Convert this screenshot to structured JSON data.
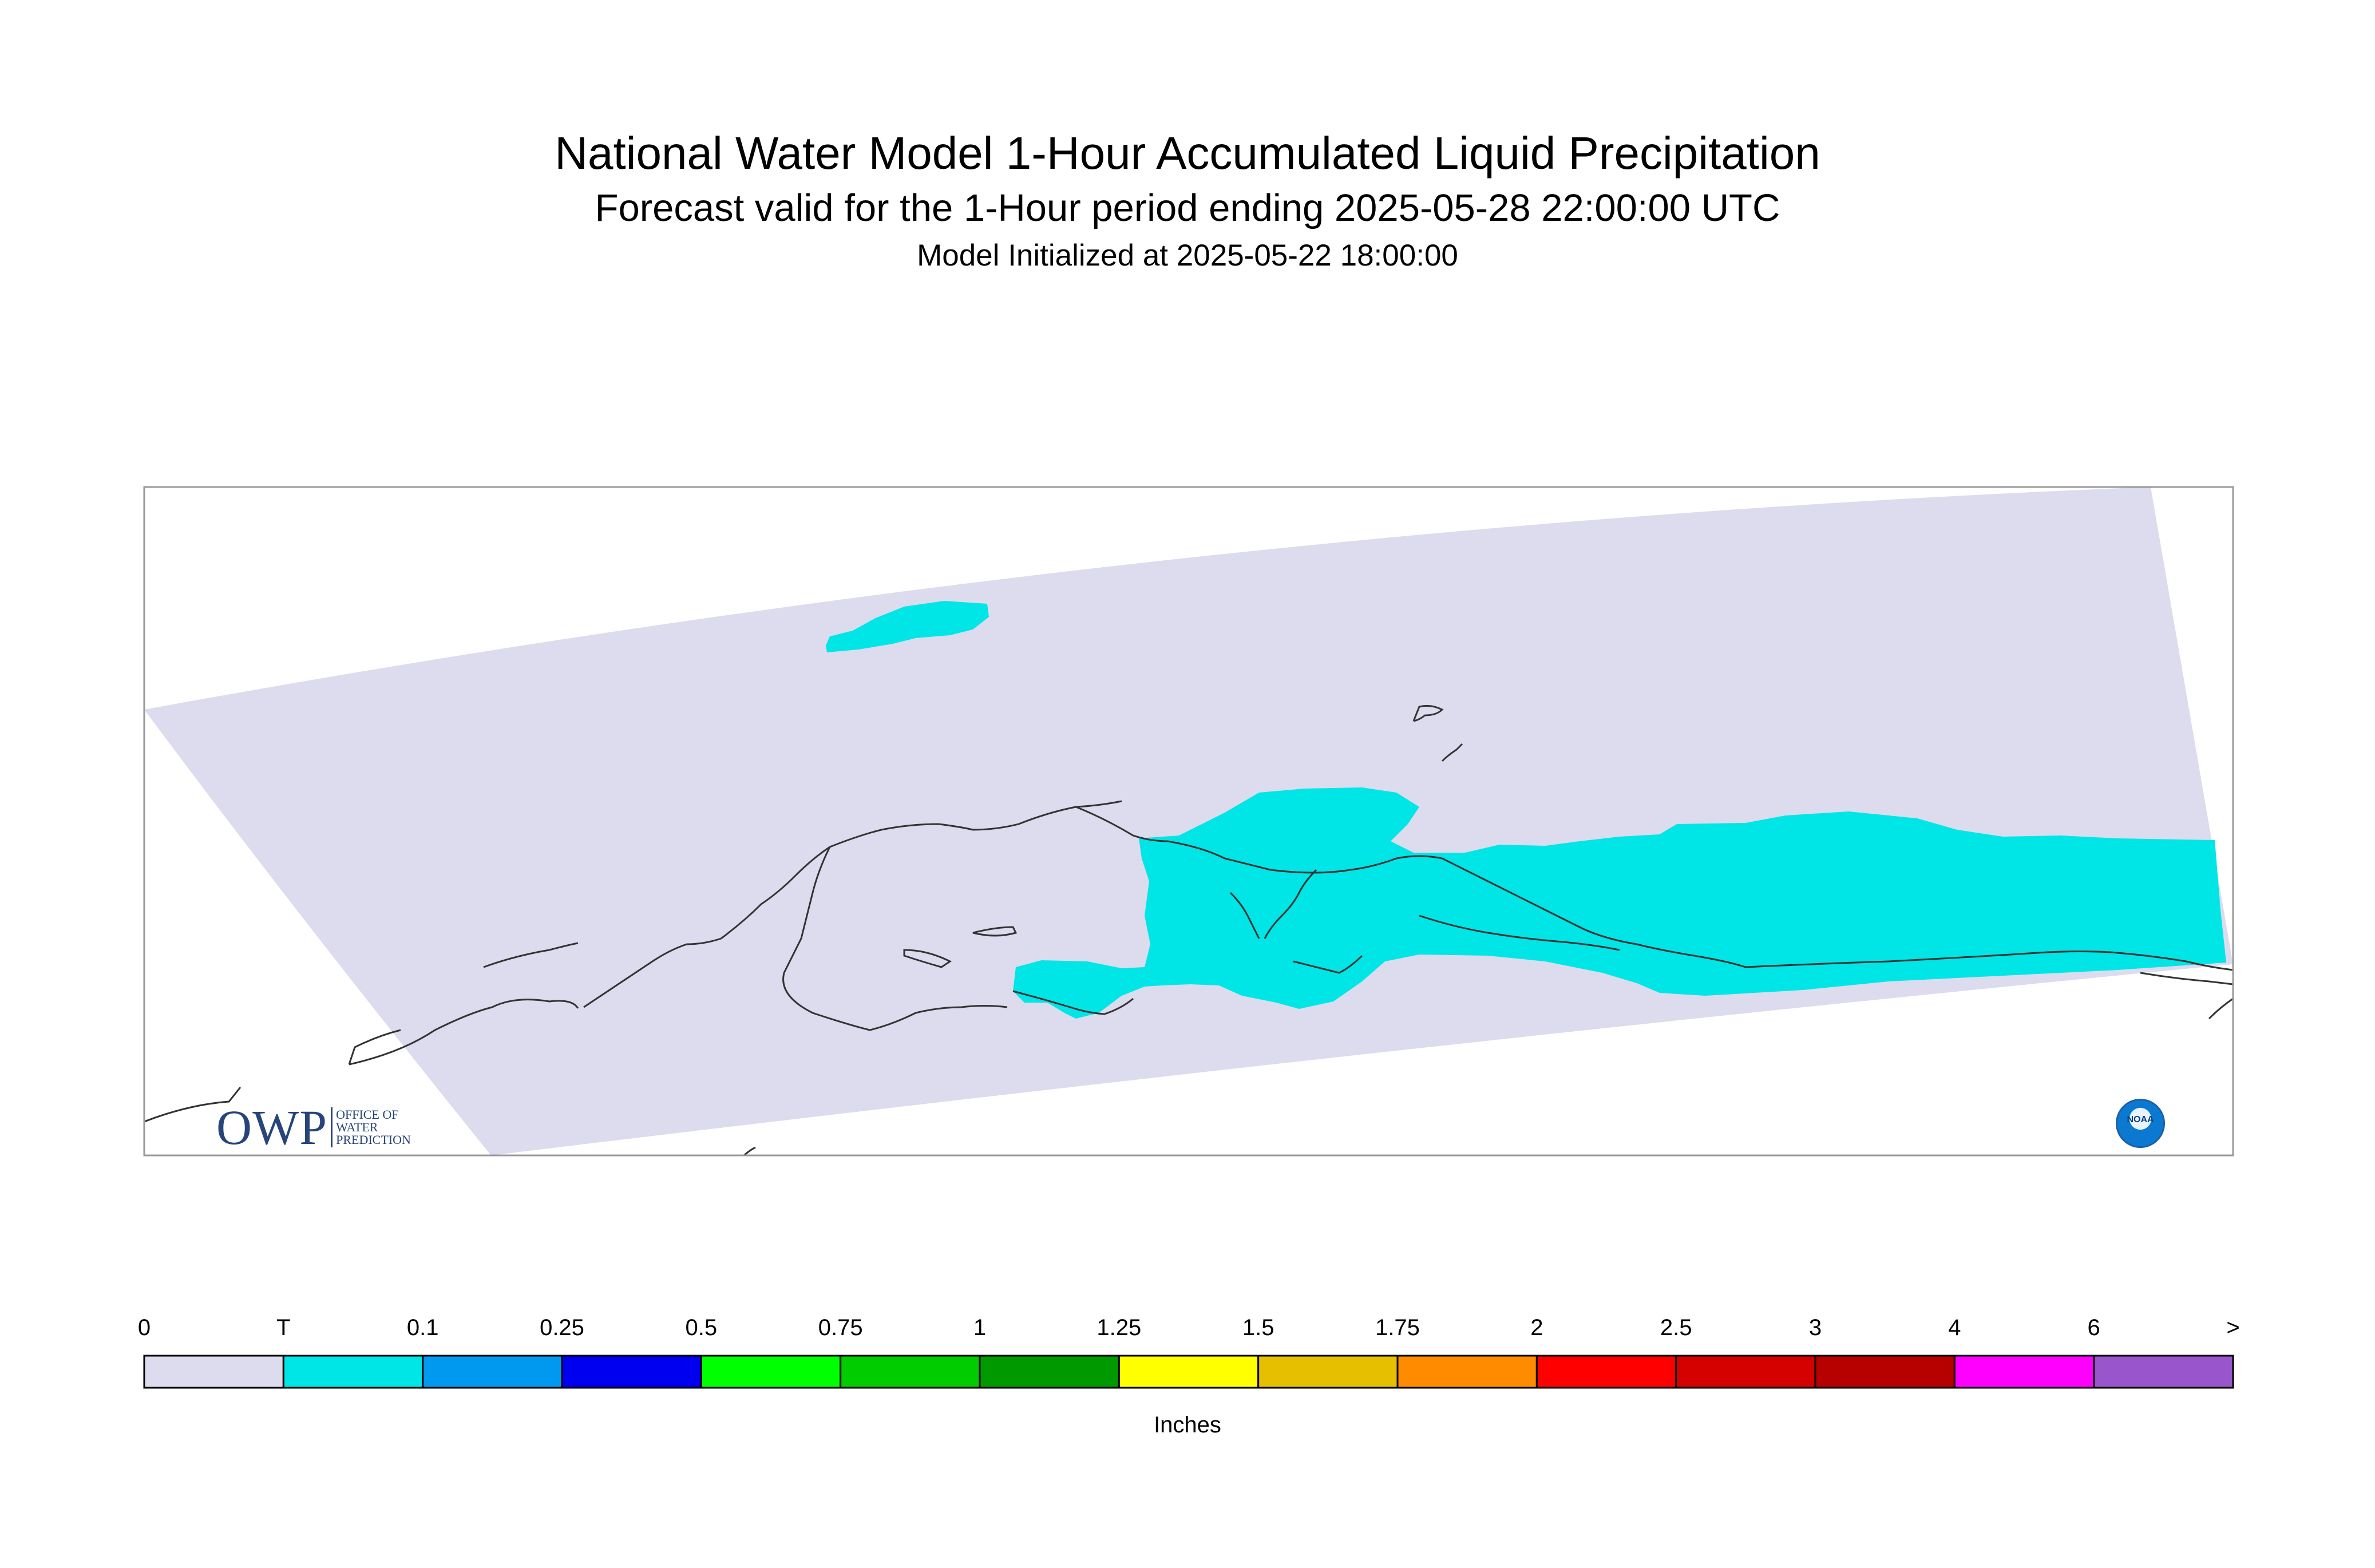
{
  "header": {
    "title": "National Water Model 1-Hour Accumulated Liquid Precipitation",
    "subtitle": "Forecast valid for the 1-Hour period ending 2025-05-28 22:00:00 UTC",
    "init": "Model Initialized at 2025-05-22 18:00:00"
  },
  "colorbar": {
    "labels": [
      "0",
      "T",
      "0.1",
      "0.25",
      "0.5",
      "0.75",
      "1",
      "1.25",
      "1.5",
      "1.75",
      "2",
      "2.5",
      "3",
      "4",
      "6",
      ">"
    ],
    "colors": [
      "#dcdcee",
      "#00e5e5",
      "#0099f0",
      "#0000f0",
      "#00ff00",
      "#00cc00",
      "#009900",
      "#ffff00",
      "#e5bf00",
      "#ff8c00",
      "#ff0000",
      "#d50000",
      "#b70000",
      "#ff00ff",
      "#9955cc"
    ],
    "units": "Inches"
  },
  "map": {
    "domain_color": "#dcdcee",
    "precip_color": "#00e5e5",
    "coast_color": "#333333"
  },
  "logos": {
    "owp": {
      "big": "OWP",
      "line1": "OFFICE OF",
      "line2": "WATER",
      "line3": "PREDICTION"
    },
    "noaa": "NOAA"
  }
}
